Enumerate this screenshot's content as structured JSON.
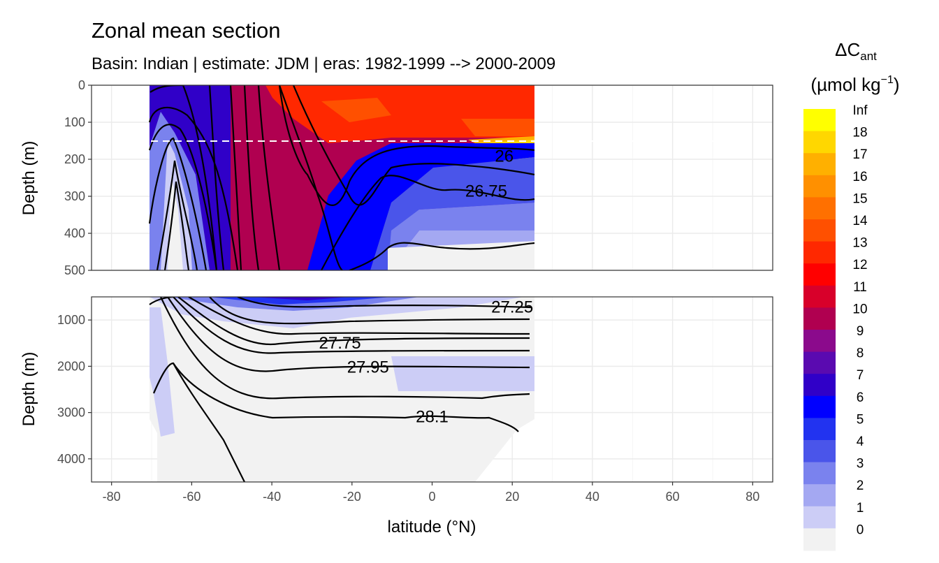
{
  "chart_data": {
    "type": "heatmap",
    "title": "Zonal mean section",
    "subtitle": "Basin: Indian | estimate: JDM  | eras: 1982-1999 --> 2000-2009",
    "xlabel": "latitude (°N)",
    "ylabel": "Depth (m)",
    "xlim": [
      -85,
      85
    ],
    "x_ticks": [
      "-80",
      "-60",
      "-40",
      "-20",
      "0",
      "20",
      "40",
      "60",
      "80"
    ],
    "x_tick_values": [
      -80,
      -60,
      -40,
      -20,
      0,
      20,
      40,
      60,
      80
    ],
    "panels": [
      {
        "name": "upper",
        "ylim": [
          0,
          500
        ],
        "y_ticks": [
          "0",
          "100",
          "200",
          "300",
          "400",
          "500"
        ],
        "y_tick_values": [
          0,
          100,
          200,
          300,
          400,
          500
        ]
      },
      {
        "name": "lower",
        "ylim": [
          500,
          4500
        ],
        "y_ticks": [
          "1000",
          "2000",
          "3000",
          "4000"
        ],
        "y_tick_values": [
          1000,
          2000,
          3000,
          4000
        ]
      }
    ],
    "data_extent_lat": [
      -70,
      25
    ],
    "reference_depth_line_m": 150,
    "legend": {
      "title_main": "ΔC",
      "title_sub": "ant",
      "unit_text": "(µmol kg",
      "unit_sup": "−1",
      "unit_close": ")",
      "levels": [
        "Inf",
        "18",
        "17",
        "16",
        "15",
        "14",
        "13",
        "12",
        "11",
        "10",
        "9",
        "8",
        "7",
        "6",
        "5",
        "4",
        "3",
        "2",
        "1",
        "0"
      ],
      "colors": [
        "#ffff00",
        "#ffd700",
        "#ffb000",
        "#ff9000",
        "#ff7000",
        "#ff5000",
        "#ff2800",
        "#ff0000",
        "#d8002a",
        "#b00050",
        "#8b0a8c",
        "#5a0ab0",
        "#3000c8",
        "#0000ff",
        "#2233f0",
        "#4a55ea",
        "#7a82ee",
        "#a4a8f2",
        "#cccdf6",
        "#f2f2f2"
      ]
    },
    "contours": [
      {
        "level": "26",
        "label": "26",
        "panel": "upper",
        "label_lat": 18,
        "label_depth": 190
      },
      {
        "level": "26.75",
        "label": "26.75",
        "panel": "upper",
        "label_lat": 13.5,
        "label_depth": 284
      },
      {
        "level": "27.25",
        "label": "27.25",
        "panel": "lower",
        "label_lat": 20,
        "label_depth": 700
      },
      {
        "level": "27.75",
        "label": "27.75",
        "panel": "lower",
        "label_lat": -23,
        "label_depth": 1480
      },
      {
        "level": "27.95",
        "label": "27.95",
        "panel": "lower",
        "label_lat": -16,
        "label_depth": 2000
      },
      {
        "level": "28.1",
        "label": "28.1",
        "panel": "lower",
        "label_lat": 0,
        "label_depth": 3070
      }
    ]
  }
}
